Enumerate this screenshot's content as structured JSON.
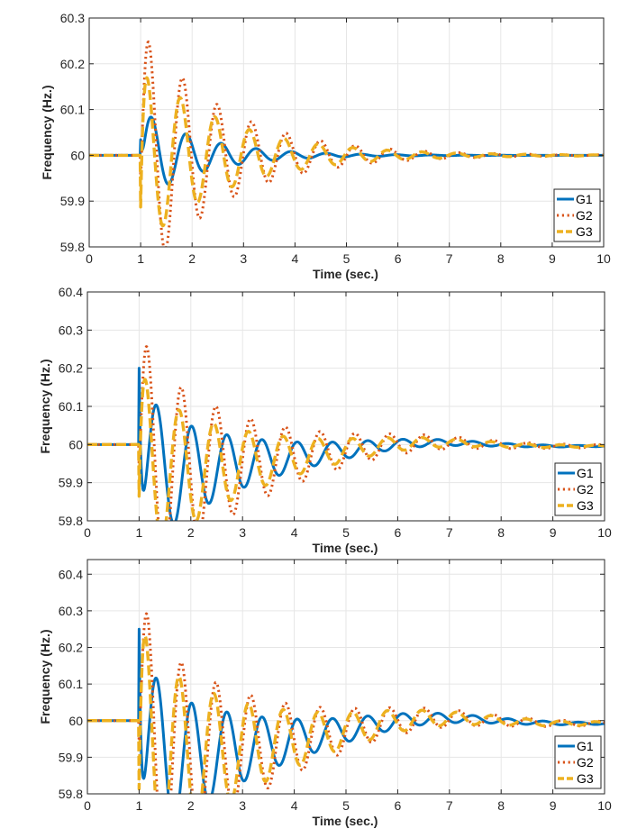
{
  "chart_data": [
    {
      "type": "line",
      "title": "",
      "xlabel": "Time (sec.)",
      "ylabel": "Frequency (Hz.)",
      "xlim": [
        0,
        10
      ],
      "ylim": [
        59.8,
        60.3
      ],
      "xticks": [
        "0",
        "1",
        "2",
        "3",
        "4",
        "5",
        "6",
        "7",
        "8",
        "9",
        "10"
      ],
      "yticks": [
        "59.8",
        "59.9",
        "60",
        "60.1",
        "60.2",
        "60.3"
      ],
      "grid": true,
      "legend": "bottom-right",
      "series": [
        {
          "name": "G1",
          "color": "#0072BD",
          "style": "solid",
          "baseline": 60,
          "disturbance_time": 1.0,
          "peaks": [
            [
              1.1,
              59.98
            ],
            [
              1.42,
              60.093
            ],
            [
              1.75,
              59.965
            ],
            [
              2.1,
              60.053
            ],
            [
              2.42,
              59.975
            ],
            [
              2.78,
              60.033
            ],
            [
              3.1,
              59.985
            ],
            [
              3.45,
              60.02
            ],
            [
              3.8,
              59.99
            ],
            [
              4.15,
              60.01
            ]
          ],
          "model": {
            "amp": 0.1,
            "freq": 1.47,
            "decay": 0.85,
            "phase": -0.35,
            "drift_amp": 0,
            "drift_center": 6.5,
            "drift_width": 1.6
          }
        },
        {
          "name": "G2",
          "color": "#D95319",
          "style": "dotted",
          "baseline": 60,
          "disturbance_time": 1.0,
          "peaks": [
            [
              1.12,
              60.275
            ],
            [
              1.43,
              59.805
            ],
            [
              1.78,
              60.18
            ],
            [
              2.12,
              59.85
            ],
            [
              2.45,
              60.12
            ],
            [
              2.78,
              59.92
            ],
            [
              3.12,
              60.085
            ],
            [
              3.45,
              59.95
            ],
            [
              3.8,
              60.05
            ],
            [
              4.15,
              59.965
            ],
            [
              4.5,
              60.03
            ],
            [
              4.85,
              59.98
            ],
            [
              5.2,
              60.02
            ]
          ],
          "model": {
            "amp": 0.28,
            "freq": 1.49,
            "decay": 0.62,
            "phase": 0.2,
            "drift_amp": 0,
            "drift_center": 6.5,
            "drift_width": 1.6
          }
        },
        {
          "name": "G3",
          "color": "#EDB120",
          "style": "dashed",
          "baseline": 60,
          "disturbance_time": 1.0,
          "peaks": [
            [
              1.2,
              60.125
            ],
            [
              1.45,
              59.83
            ],
            [
              1.72,
              60.155
            ],
            [
              2.0,
              59.96
            ],
            [
              2.48,
              60.09
            ],
            [
              2.78,
              59.945
            ],
            [
              3.12,
              60.04
            ],
            [
              3.45,
              59.97
            ],
            [
              3.8,
              60.04
            ],
            [
              4.15,
              59.985
            ]
          ],
          "model": {
            "amp": 0.2,
            "freq": 1.49,
            "decay": 0.6,
            "phase": 0.6,
            "drift_amp": 0,
            "drift_center": 6.5,
            "drift_width": 1.6
          }
        }
      ]
    },
    {
      "type": "line",
      "title": "",
      "xlabel": "Time (sec.)",
      "ylabel": "Frequency (Hz.)",
      "xlim": [
        0,
        10
      ],
      "ylim": [
        59.8,
        60.4
      ],
      "xticks": [
        "0",
        "1",
        "2",
        "3",
        "4",
        "5",
        "6",
        "7",
        "8",
        "9",
        "10"
      ],
      "yticks": [
        "59.8",
        "59.9",
        "60",
        "60.1",
        "60.2",
        "60.3",
        "60.4"
      ],
      "grid": true,
      "legend": "bottom-right",
      "series": [
        {
          "name": "G1",
          "color": "#0072BD",
          "style": "solid",
          "baseline": 60,
          "disturbance_time": 1.0,
          "peaks": [
            [
              1.42,
              60.22
            ],
            [
              1.78,
              60.02
            ],
            [
              2.1,
              60.105
            ],
            [
              2.45,
              59.955
            ],
            [
              2.78,
              60.012
            ],
            [
              3.12,
              59.925
            ],
            [
              3.45,
              59.97
            ],
            [
              3.8,
              59.93
            ],
            [
              4.15,
              59.97
            ],
            [
              4.5,
              59.94
            ],
            [
              6.5,
              60.015
            ],
            [
              9.5,
              59.997
            ]
          ],
          "model": {
            "amp": 0.2,
            "freq": 1.47,
            "decay": 0.55,
            "phase": -1.55,
            "offset_amp": -0.06,
            "offset_decay": 0.35,
            "drift_amp": 0.075,
            "drift_center": 6.4,
            "drift_width": 1.7
          }
        },
        {
          "name": "G2",
          "color": "#D95319",
          "style": "dotted",
          "baseline": 60,
          "disturbance_time": 1.0,
          "peaks": [
            [
              1.12,
              60.355
            ],
            [
              1.45,
              59.835
            ],
            [
              1.78,
              60.325
            ],
            [
              2.12,
              59.87
            ],
            [
              2.45,
              60.15
            ],
            [
              2.78,
              59.855
            ],
            [
              3.12,
              60.055
            ],
            [
              3.45,
              59.875
            ],
            [
              3.8,
              60.015
            ],
            [
              4.15,
              59.915
            ],
            [
              4.5,
              60.01
            ],
            [
              6.0,
              60.02
            ],
            [
              6.6,
              60.02
            ]
          ],
          "model": {
            "amp": 0.33,
            "freq": 1.49,
            "decay": 0.5,
            "phase": 0.2,
            "offset_amp": -0.06,
            "offset_decay": 0.35,
            "drift_amp": 0.075,
            "drift_center": 6.4,
            "drift_width": 1.7
          }
        },
        {
          "name": "G3",
          "color": "#EDB120",
          "style": "dashed",
          "baseline": 60,
          "disturbance_time": 1.0,
          "peaks": [
            [
              1.12,
              60.29
            ],
            [
              1.4,
              59.93
            ],
            [
              1.82,
              60.18
            ],
            [
              2.12,
              59.915
            ],
            [
              2.45,
              60.1
            ],
            [
              2.78,
              59.92
            ],
            [
              3.12,
              60.035
            ],
            [
              3.45,
              59.91
            ],
            [
              3.8,
              59.99
            ],
            [
              4.15,
              59.935
            ]
          ],
          "model": {
            "amp": 0.24,
            "freq": 1.49,
            "decay": 0.52,
            "phase": 0.6,
            "offset_amp": -0.06,
            "offset_decay": 0.35,
            "drift_amp": 0.075,
            "drift_center": 6.4,
            "drift_width": 1.7
          }
        }
      ]
    },
    {
      "type": "line",
      "title": "",
      "xlabel": "Time (sec.)",
      "ylabel": "Frequency (Hz.)",
      "xlim": [
        0,
        10
      ],
      "ylim": [
        59.8,
        60.44
      ],
      "xticks": [
        "0",
        "1",
        "2",
        "3",
        "4",
        "5",
        "6",
        "7",
        "8",
        "9",
        "10"
      ],
      "yticks": [
        "59.8",
        "59.9",
        "60",
        "60.1",
        "60.2",
        "60.3",
        "60.4"
      ],
      "grid": true,
      "legend": "bottom-right",
      "series": [
        {
          "name": "G1",
          "color": "#0072BD",
          "style": "solid",
          "baseline": 60,
          "disturbance_time": 1.0,
          "peaks": [
            [
              1.42,
              60.298
            ],
            [
              1.82,
              60.05
            ],
            [
              2.12,
              60.135
            ],
            [
              2.45,
              59.945
            ],
            [
              2.78,
              59.998
            ],
            [
              3.12,
              59.885
            ],
            [
              3.45,
              59.935
            ],
            [
              3.82,
              59.89
            ],
            [
              4.15,
              59.945
            ],
            [
              6.5,
              60.025
            ],
            [
              9.5,
              59.995
            ]
          ],
          "model": {
            "amp": 0.25,
            "freq": 1.47,
            "decay": 0.5,
            "phase": -1.55,
            "offset_amp": -0.09,
            "offset_decay": 0.32,
            "drift_amp": 0.12,
            "drift_center": 6.5,
            "drift_width": 1.8
          }
        },
        {
          "name": "G2",
          "color": "#D95319",
          "style": "dotted",
          "baseline": 60,
          "disturbance_time": 1.0,
          "peaks": [
            [
              1.12,
              60.41
            ],
            [
              1.45,
              59.845
            ],
            [
              1.78,
              60.405
            ],
            [
              2.12,
              59.87
            ],
            [
              2.45,
              60.165
            ],
            [
              2.78,
              59.82
            ],
            [
              3.12,
              60.03
            ],
            [
              3.45,
              59.83
            ],
            [
              3.82,
              59.99
            ],
            [
              4.15,
              59.875
            ],
            [
              4.5,
              59.995
            ],
            [
              6.0,
              60.035
            ],
            [
              6.7,
              60.035
            ]
          ],
          "model": {
            "amp": 0.39,
            "freq": 1.49,
            "decay": 0.47,
            "phase": 0.2,
            "offset_amp": -0.09,
            "offset_decay": 0.32,
            "drift_amp": 0.12,
            "drift_center": 6.5,
            "drift_width": 1.8
          }
        },
        {
          "name": "G3",
          "color": "#EDB120",
          "style": "dashed",
          "baseline": 60,
          "disturbance_time": 1.0,
          "peaks": [
            [
              1.1,
              60.42
            ],
            [
              1.38,
              59.925
            ],
            [
              1.6,
              60.17
            ],
            [
              1.87,
              60.25
            ],
            [
              2.12,
              59.9
            ],
            [
              2.45,
              60.125
            ],
            [
              2.78,
              59.88
            ],
            [
              3.12,
              60.01
            ],
            [
              3.45,
              59.87
            ],
            [
              3.82,
              59.965
            ],
            [
              4.15,
              59.9
            ]
          ],
          "model": {
            "amp": 0.33,
            "freq": 1.49,
            "decay": 0.48,
            "phase": 0.6,
            "offset_amp": -0.09,
            "offset_decay": 0.32,
            "drift_amp": 0.12,
            "drift_center": 6.5,
            "drift_width": 1.8
          }
        }
      ]
    }
  ]
}
